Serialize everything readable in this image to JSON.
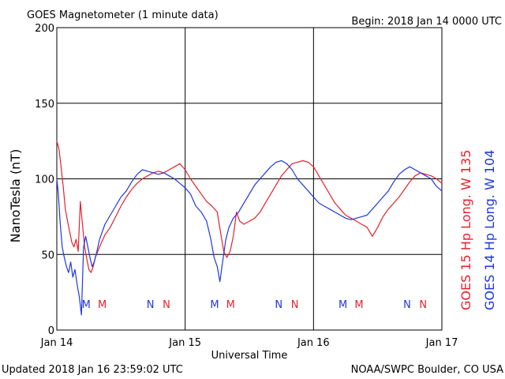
{
  "chart_data": {
    "type": "line",
    "title": "GOES Magnetometer (1 minute data)",
    "begin_label": "Begin:  2018 Jan 14 0000 UTC",
    "xlabel": "Universal Time",
    "ylabel": "NanoTesla (nT)",
    "updated": "Updated 2018 Jan 16 23:59:02 UTC",
    "credit": "NOAA/SWPC Boulder, CO USA",
    "x_unit": "hours since 2018 Jan 14 0000 UTC",
    "xlim": [
      0,
      72
    ],
    "ylim": [
      0,
      200
    ],
    "grid": true,
    "x_ticks": [
      {
        "x": 0,
        "label": "Jan 14"
      },
      {
        "x": 24,
        "label": "Jan 15"
      },
      {
        "x": 48,
        "label": "Jan 16"
      },
      {
        "x": 72,
        "label": "Jan 17"
      }
    ],
    "y_ticks": [
      0,
      50,
      100,
      150,
      200
    ],
    "series": [
      {
        "name": "GOES 15 Hp  Long. W 135",
        "color": "#e8202a",
        "x": [
          0,
          0.4,
          0.8,
          1.2,
          1.6,
          2.0,
          2.4,
          2.8,
          3.2,
          3.6,
          4.0,
          4.4,
          4.8,
          5.2,
          5.6,
          6.0,
          6.4,
          6.8,
          7.2,
          8,
          9,
          10,
          11,
          12,
          13,
          14,
          15,
          16,
          17,
          18,
          19,
          20,
          21,
          22,
          23,
          24,
          25,
          26,
          27,
          28,
          29,
          30,
          30.6,
          31.2,
          31.8,
          32.4,
          33,
          33.6,
          34.2,
          35,
          36,
          37,
          38,
          39,
          40,
          41,
          42,
          43,
          44,
          45,
          46,
          47,
          48,
          49,
          50,
          51,
          52,
          53,
          54,
          55,
          56,
          57,
          58,
          59,
          60,
          61,
          62,
          63,
          64,
          65,
          66,
          67,
          68,
          69,
          70,
          71,
          72
        ],
        "values": [
          125,
          120,
          108,
          95,
          80,
          72,
          65,
          58,
          55,
          60,
          52,
          85,
          70,
          55,
          47,
          40,
          38,
          42,
          48,
          55,
          63,
          68,
          75,
          82,
          88,
          93,
          97,
          100,
          102,
          104,
          105,
          104,
          106,
          108,
          110,
          106,
          100,
          95,
          90,
          85,
          82,
          78,
          65,
          52,
          48,
          52,
          62,
          78,
          72,
          70,
          72,
          74,
          78,
          84,
          90,
          96,
          102,
          106,
          110,
          111,
          112,
          111,
          108,
          102,
          96,
          90,
          84,
          80,
          76,
          74,
          72,
          70,
          68,
          62,
          68,
          75,
          80,
          84,
          88,
          93,
          98,
          102,
          104,
          103,
          102,
          100,
          97
        ]
      },
      {
        "name": "GOES 14 Hp  Long. W 104",
        "color": "#1f37e0",
        "x": [
          0,
          0.3,
          0.6,
          1.0,
          1.4,
          1.8,
          2.2,
          2.6,
          3.0,
          3.4,
          3.8,
          4.2,
          4.6,
          5.0,
          5.4,
          5.8,
          6.2,
          6.6,
          7.0,
          7.5,
          8,
          9,
          10,
          11,
          12,
          13,
          14,
          15,
          16,
          17,
          18,
          19,
          20,
          21,
          22,
          23,
          24,
          25,
          26,
          27,
          28,
          28.8,
          29.4,
          30,
          30.5,
          31,
          31.6,
          32.2,
          33,
          34,
          35,
          36,
          37,
          38,
          39,
          40,
          41,
          42,
          43,
          44,
          45,
          46,
          47,
          48,
          49,
          50,
          51,
          52,
          53,
          54,
          55,
          56,
          57,
          58,
          59,
          60,
          61,
          62,
          63,
          64,
          65,
          66,
          67,
          68,
          69,
          70,
          71,
          72
        ],
        "values": [
          100,
          90,
          72,
          55,
          48,
          42,
          38,
          45,
          35,
          40,
          30,
          22,
          10,
          55,
          62,
          55,
          48,
          42,
          45,
          52,
          60,
          70,
          76,
          82,
          88,
          92,
          98,
          103,
          106,
          105,
          104,
          103,
          104,
          102,
          100,
          97,
          94,
          90,
          82,
          78,
          72,
          60,
          48,
          42,
          32,
          45,
          60,
          68,
          74,
          78,
          84,
          90,
          96,
          100,
          104,
          108,
          111,
          112,
          110,
          106,
          100,
          96,
          92,
          88,
          84,
          82,
          80,
          78,
          76,
          74,
          73,
          74,
          75,
          76,
          80,
          84,
          88,
          92,
          98,
          103,
          106,
          108,
          106,
          104,
          102,
          100,
          95,
          92
        ]
      }
    ],
    "annotations": [
      {
        "x": 5.5,
        "text": "M",
        "color": "#1f37e0"
      },
      {
        "x": 8.5,
        "text": "M",
        "color": "#e8202a"
      },
      {
        "x": 17.5,
        "text": "N",
        "color": "#1f37e0"
      },
      {
        "x": 20.5,
        "text": "N",
        "color": "#e8202a"
      },
      {
        "x": 29.5,
        "text": "M",
        "color": "#1f37e0"
      },
      {
        "x": 32.5,
        "text": "M",
        "color": "#e8202a"
      },
      {
        "x": 41.5,
        "text": "N",
        "color": "#1f37e0"
      },
      {
        "x": 44.5,
        "text": "N",
        "color": "#e8202a"
      },
      {
        "x": 53.5,
        "text": "M",
        "color": "#1f37e0"
      },
      {
        "x": 56.5,
        "text": "M",
        "color": "#e8202a"
      },
      {
        "x": 65.5,
        "text": "N",
        "color": "#1f37e0"
      },
      {
        "x": 68.5,
        "text": "N",
        "color": "#e8202a"
      }
    ]
  }
}
